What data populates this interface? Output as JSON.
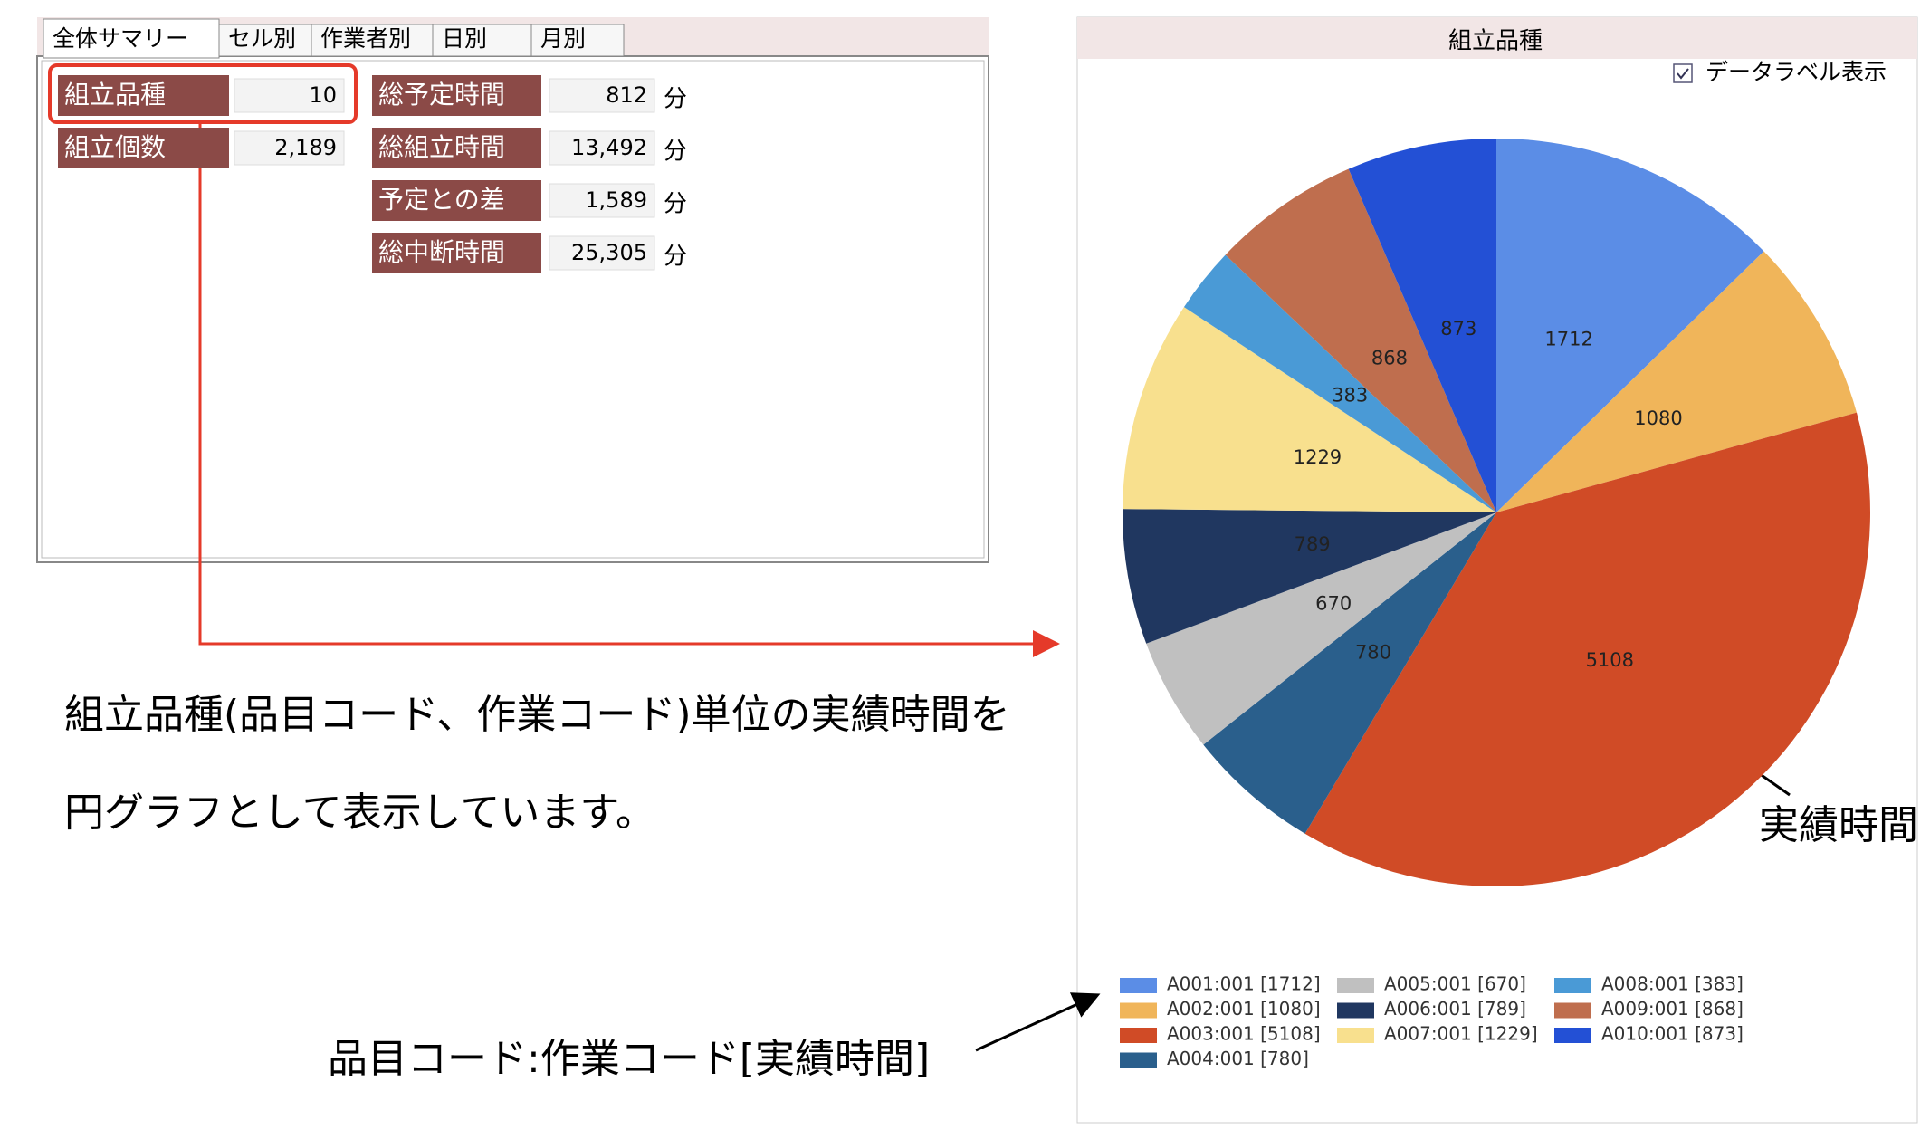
{
  "tabs": [
    "全体サマリー",
    "セル別",
    "作業者別",
    "日別",
    "月別"
  ],
  "summary": {
    "left": [
      {
        "label": "組立品種",
        "value": "10"
      },
      {
        "label": "組立個数",
        "value": "2,189"
      }
    ],
    "right": [
      {
        "label": "総予定時間",
        "value": "812",
        "unit": "分"
      },
      {
        "label": "総組立時間",
        "value": "13,492",
        "unit": "分"
      },
      {
        "label": "予定との差",
        "value": "1,589",
        "unit": "分"
      },
      {
        "label": "総中断時間",
        "value": "25,305",
        "unit": "分"
      }
    ]
  },
  "annotations": {
    "description": [
      "組立品種(品目コード、作業コード)単位の実績時間を",
      "円グラフとして表示しています。"
    ],
    "value_note": "実績時間",
    "legend_note": "品目コード:作業コード[実績時間]"
  },
  "chart_data": {
    "type": "pie",
    "title": "組立品種",
    "checkbox_label": "データラベル表示",
    "categories": [
      "A001:001",
      "A002:001",
      "A003:001",
      "A004:001",
      "A005:001",
      "A006:001",
      "A007:001",
      "A008:001",
      "A009:001",
      "A010:001"
    ],
    "values": [
      1712,
      1080,
      5108,
      780,
      670,
      789,
      1229,
      383,
      868,
      873
    ],
    "legend_labels": [
      "A001:001 [1712]",
      "A002:001 [1080]",
      "A003:001 [5108]",
      "A004:001 [780]",
      "A005:001 [670]",
      "A006:001 [789]",
      "A007:001 [1229]",
      "A008:001 [383]",
      "A009:001 [868]",
      "A010:001 [873]"
    ],
    "colors": [
      "#5b8de6",
      "#f0b55a",
      "#d04b26",
      "#2a5f8c",
      "#c0c0c0",
      "#203760",
      "#f8e08e",
      "#4a9ad6",
      "#bf6e4e",
      "#2350d5"
    ]
  }
}
